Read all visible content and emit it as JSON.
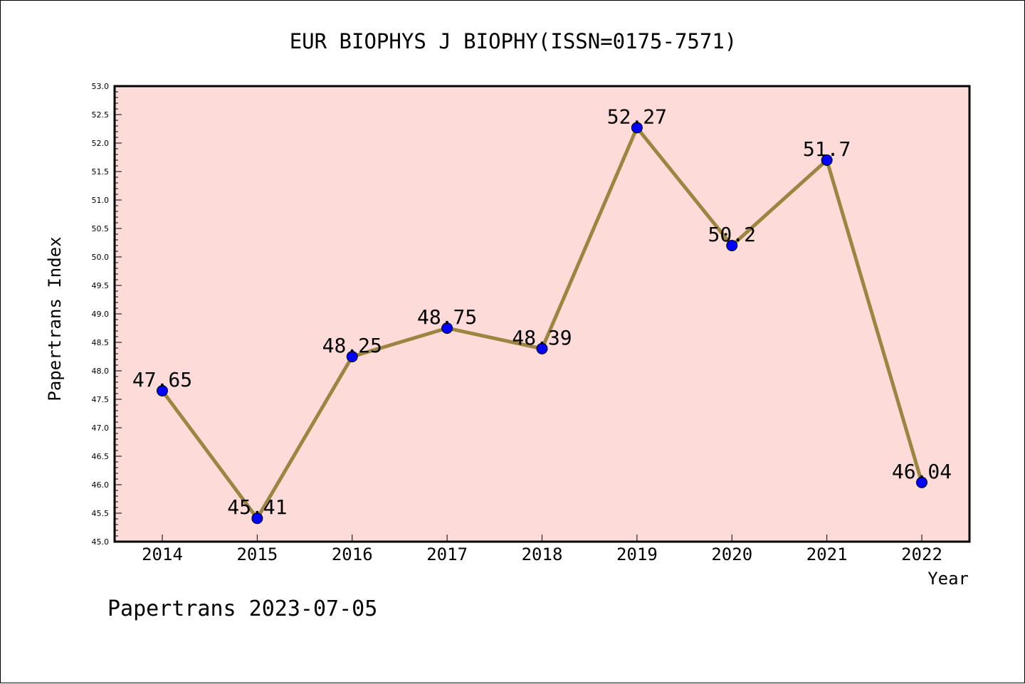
{
  "chart_data": {
    "type": "line",
    "title": "EUR BIOPHYS J BIOPHY(ISSN=0175-7571)",
    "xlabel": "Year",
    "ylabel": "Papertrans Index",
    "x": [
      "2014",
      "2015",
      "2016",
      "2017",
      "2018",
      "2019",
      "2020",
      "2021",
      "2022"
    ],
    "values": [
      47.65,
      45.41,
      48.25,
      48.75,
      48.39,
      52.27,
      50.2,
      51.7,
      46.04
    ],
    "data_labels": [
      "47.65",
      "45.41",
      "48.25",
      "48.75",
      "48.39",
      "52.27",
      "50.2",
      "51.7",
      "46.04"
    ],
    "ylim": [
      45.0,
      53.0
    ],
    "yticks": [
      "45.0",
      "45.5",
      "46.0",
      "46.5",
      "47.0",
      "47.5",
      "48.0",
      "48.5",
      "49.0",
      "49.5",
      "50.0",
      "50.5",
      "51.0",
      "51.5",
      "52.0",
      "52.5",
      "53.0"
    ],
    "grid": false,
    "colors": {
      "plot_background": "#fddbd9",
      "line": "#9c8540",
      "marker": "#0000ff"
    }
  },
  "footer": {
    "text": "Papertrans 2023-07-05"
  }
}
